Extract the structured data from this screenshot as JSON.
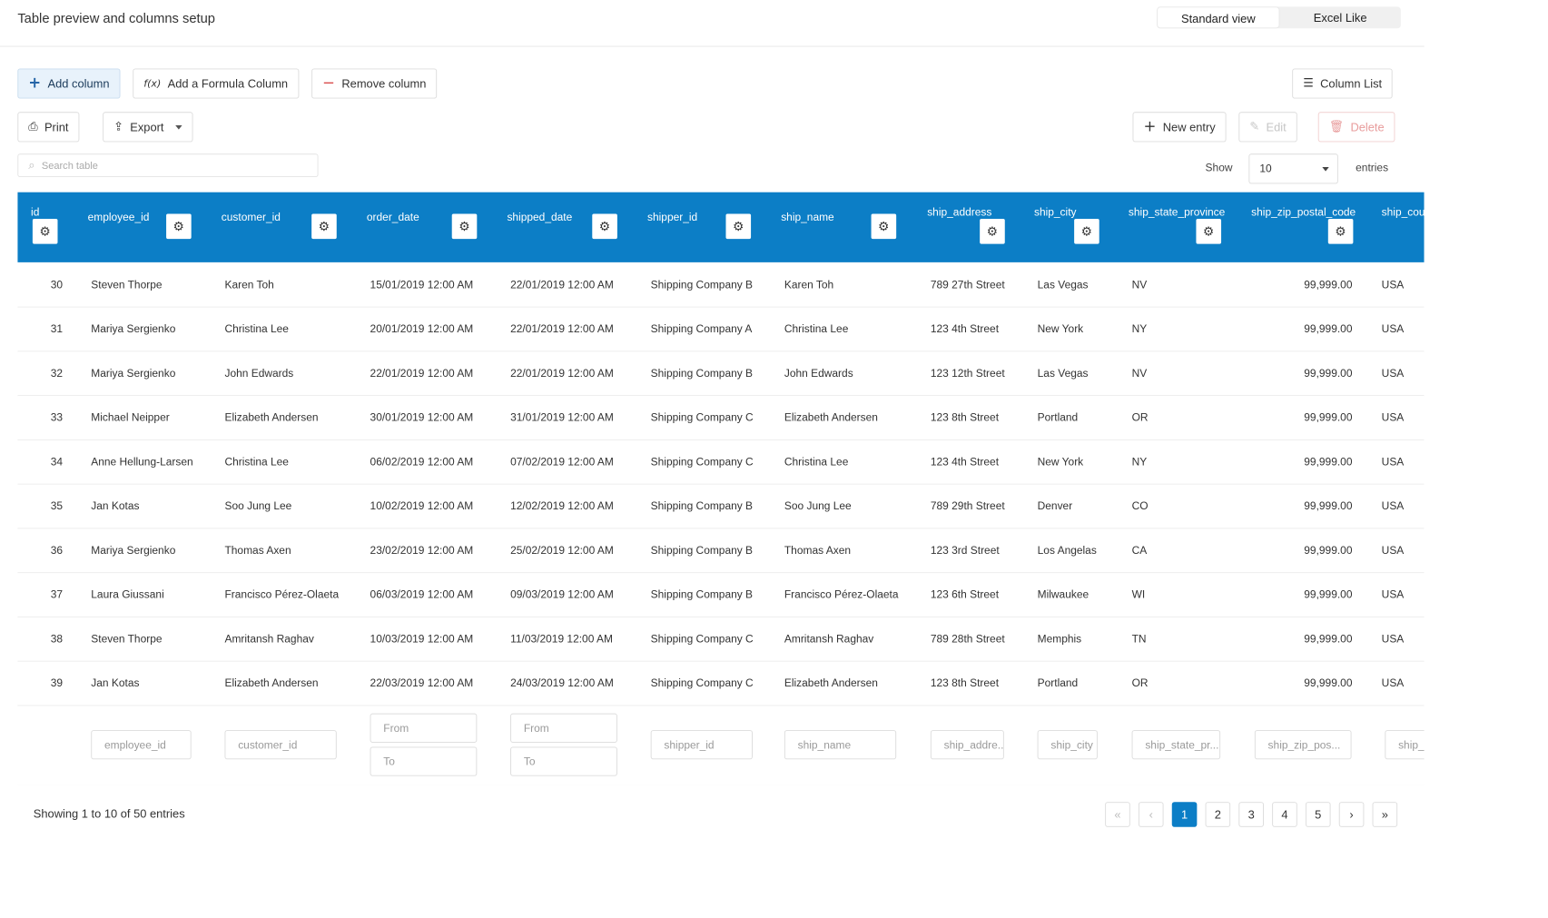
{
  "header": {
    "title": "Table preview and columns setup",
    "views": [
      "Standard view",
      "Excel Like"
    ]
  },
  "toolbar": {
    "add_column": "Add column",
    "add_formula": "Add a Formula Column",
    "formula_icon_text": "f(x)",
    "remove_column": "Remove column",
    "column_list": "Column List",
    "print": "Print",
    "export": "Export",
    "new_entry": "New entry",
    "edit": "Edit",
    "delete": "Delete"
  },
  "search": {
    "placeholder": "Search table"
  },
  "paging_controls": {
    "show": "Show",
    "value": "10",
    "entries": "entries"
  },
  "columns": [
    "id",
    "employee_id",
    "customer_id",
    "order_date",
    "shipped_date",
    "shipper_id",
    "ship_name",
    "ship_address",
    "ship_city",
    "ship_state_province",
    "ship_zip_postal_code",
    "ship_cou"
  ],
  "rows": [
    [
      "30",
      "Steven Thorpe",
      "Karen Toh",
      "15/01/2019 12:00 AM",
      "22/01/2019 12:00 AM",
      "Shipping Company B",
      "Karen Toh",
      "789 27th Street",
      "Las Vegas",
      "NV",
      "99,999.00",
      "USA"
    ],
    [
      "31",
      "Mariya Sergienko",
      "Christina Lee",
      "20/01/2019 12:00 AM",
      "22/01/2019 12:00 AM",
      "Shipping Company A",
      "Christina Lee",
      "123 4th Street",
      "New York",
      "NY",
      "99,999.00",
      "USA"
    ],
    [
      "32",
      "Mariya Sergienko",
      "John Edwards",
      "22/01/2019 12:00 AM",
      "22/01/2019 12:00 AM",
      "Shipping Company B",
      "John Edwards",
      "123 12th Street",
      "Las Vegas",
      "NV",
      "99,999.00",
      "USA"
    ],
    [
      "33",
      "Michael Neipper",
      "Elizabeth Andersen",
      "30/01/2019 12:00 AM",
      "31/01/2019 12:00 AM",
      "Shipping Company C",
      "Elizabeth Andersen",
      "123 8th Street",
      "Portland",
      "OR",
      "99,999.00",
      "USA"
    ],
    [
      "34",
      "Anne Hellung-Larsen",
      "Christina Lee",
      "06/02/2019 12:00 AM",
      "07/02/2019 12:00 AM",
      "Shipping Company C",
      "Christina Lee",
      "123 4th Street",
      "New York",
      "NY",
      "99,999.00",
      "USA"
    ],
    [
      "35",
      "Jan Kotas",
      "Soo Jung Lee",
      "10/02/2019 12:00 AM",
      "12/02/2019 12:00 AM",
      "Shipping Company B",
      "Soo Jung Lee",
      "789 29th Street",
      "Denver",
      "CO",
      "99,999.00",
      "USA"
    ],
    [
      "36",
      "Mariya Sergienko",
      "Thomas Axen",
      "23/02/2019 12:00 AM",
      "25/02/2019 12:00 AM",
      "Shipping Company B",
      "Thomas Axen",
      "123 3rd Street",
      "Los Angelas",
      "CA",
      "99,999.00",
      "USA"
    ],
    [
      "37",
      "Laura Giussani",
      "Francisco Pérez-Olaeta",
      "06/03/2019 12:00 AM",
      "09/03/2019 12:00 AM",
      "Shipping Company B",
      "Francisco Pérez-Olaeta",
      "123 6th Street",
      "Milwaukee",
      "WI",
      "99,999.00",
      "USA"
    ],
    [
      "38",
      "Steven Thorpe",
      "Amritansh Raghav",
      "10/03/2019 12:00 AM",
      "11/03/2019 12:00 AM",
      "Shipping Company C",
      "Amritansh Raghav",
      "789 28th Street",
      "Memphis",
      "TN",
      "99,999.00",
      "USA"
    ],
    [
      "39",
      "Jan Kotas",
      "Elizabeth Andersen",
      "22/03/2019 12:00 AM",
      "24/03/2019 12:00 AM",
      "Shipping Company C",
      "Elizabeth Andersen",
      "123 8th Street",
      "Portland",
      "OR",
      "99,999.00",
      "USA"
    ]
  ],
  "filters": {
    "employee_id": "employee_id",
    "customer_id": "customer_id",
    "order_from": "From",
    "order_to": "To",
    "shipped_from": "From",
    "shipped_to": "To",
    "shipper_id": "shipper_id",
    "ship_name": "ship_name",
    "ship_address": "ship_addre...",
    "ship_city": "ship_city",
    "ship_state": "ship_state_pr...",
    "ship_zip": "ship_zip_pos...",
    "ship_country": "ship_"
  },
  "footer": {
    "showing": "Showing 1 to 10 of 50 entries",
    "pages": [
      "1",
      "2",
      "3",
      "4",
      "5"
    ],
    "first": "«",
    "prev": "‹",
    "next": "›",
    "last": "»"
  },
  "colors": {
    "accent": "#0c7ec6"
  }
}
